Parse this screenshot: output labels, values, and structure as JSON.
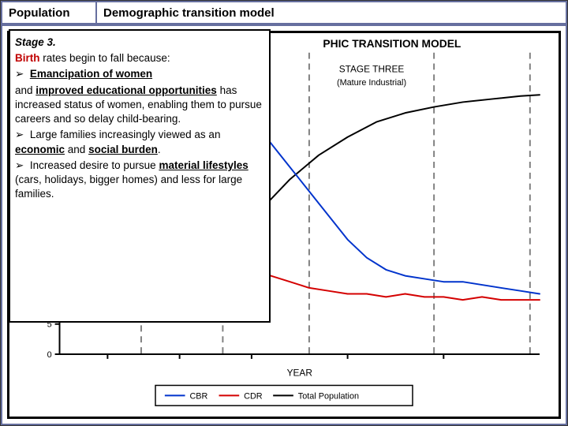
{
  "header": {
    "left": "Population",
    "right": "Demographic transition model"
  },
  "overlay": {
    "title": "Stage 3.",
    "birth_word": "Birth",
    "line_after_birth": " rates begin to fall because:",
    "b1a": "Emancipation of women",
    "b1b_and": "and ",
    "b1b_ul": "improved educational opportunities",
    "b1c": " has increased status of women, enabling them to pursue careers and so delay child-bearing.",
    "b2a": "Large families increasingly viewed as an ",
    "b2_ul1": "economic",
    "b2_mid": " and ",
    "b2_ul2": "social burden",
    "b2_end": ".",
    "b3a": "Increased desire to pursue ",
    "b3_ul": "material lifestyles",
    "b3b": " (cars, holidays, bigger homes) and less for large families."
  },
  "chart": {
    "title": "PHIC TRANSITION MODEL",
    "title_fontsize": 14,
    "title_weight": "bold",
    "title_color": "#000000",
    "stage_label_line1": "STAGE THREE",
    "stage_label_line2": "(Mature Industrial)",
    "stage_label_fontsize": 12,
    "stage_label_color": "#000000",
    "xlabel": "YEAR",
    "label_fontsize": 12,
    "plot_bg": "#ffffff",
    "axis_color": "#000000",
    "axis_width": 2,
    "stage_line_color": "#808080",
    "stage_line_width": 2,
    "stage_line_dash": "8 6",
    "y_ticks": [
      0,
      5
    ],
    "y_range": [
      0,
      50
    ],
    "x_range": [
      0,
      100
    ],
    "x_ticks": [
      10,
      25,
      40,
      60,
      80
    ],
    "stage_boundaries": [
      17,
      34,
      52,
      78,
      98
    ],
    "series": {
      "cbr": {
        "label": "CBR",
        "color": "#0033cc",
        "width": 2,
        "points": [
          [
            0,
            44
          ],
          [
            4,
            42
          ],
          [
            8,
            45
          ],
          [
            12,
            43
          ],
          [
            16,
            44
          ],
          [
            20,
            42
          ],
          [
            24,
            44
          ],
          [
            28,
            43
          ],
          [
            32,
            44
          ],
          [
            36,
            42
          ],
          [
            40,
            39
          ],
          [
            44,
            35
          ],
          [
            48,
            31
          ],
          [
            52,
            27
          ],
          [
            56,
            23
          ],
          [
            60,
            19
          ],
          [
            64,
            16
          ],
          [
            68,
            14
          ],
          [
            72,
            13
          ],
          [
            76,
            12.5
          ],
          [
            80,
            12
          ],
          [
            84,
            12
          ],
          [
            88,
            11.5
          ],
          [
            92,
            11
          ],
          [
            96,
            10.5
          ],
          [
            100,
            10
          ]
        ]
      },
      "cdr": {
        "label": "CDR",
        "color": "#d40000",
        "width": 2,
        "points": [
          [
            0,
            41
          ],
          [
            4,
            39
          ],
          [
            8,
            42
          ],
          [
            12,
            38
          ],
          [
            16,
            40
          ],
          [
            20,
            35
          ],
          [
            24,
            30
          ],
          [
            28,
            25
          ],
          [
            32,
            21
          ],
          [
            36,
            18
          ],
          [
            40,
            15
          ],
          [
            44,
            13
          ],
          [
            48,
            12
          ],
          [
            52,
            11
          ],
          [
            56,
            10.5
          ],
          [
            60,
            10
          ],
          [
            64,
            10
          ],
          [
            68,
            9.5
          ],
          [
            72,
            10
          ],
          [
            76,
            9.5
          ],
          [
            80,
            9.5
          ],
          [
            84,
            9
          ],
          [
            88,
            9.5
          ],
          [
            92,
            9
          ],
          [
            96,
            9
          ],
          [
            100,
            9
          ]
        ]
      },
      "pop": {
        "label": "Total Population",
        "color": "#000000",
        "width": 2,
        "points": [
          [
            0,
            6
          ],
          [
            10,
            7
          ],
          [
            17,
            8
          ],
          [
            24,
            10
          ],
          [
            30,
            14
          ],
          [
            36,
            19
          ],
          [
            42,
            24
          ],
          [
            48,
            29
          ],
          [
            54,
            33
          ],
          [
            60,
            36
          ],
          [
            66,
            38.5
          ],
          [
            72,
            40
          ],
          [
            78,
            41
          ],
          [
            84,
            41.8
          ],
          [
            90,
            42.3
          ],
          [
            96,
            42.8
          ],
          [
            100,
            43
          ]
        ]
      }
    },
    "legend": {
      "box_stroke": "#000000",
      "box_fill": "#ffffff",
      "items": [
        "cbr",
        "cdr",
        "pop"
      ],
      "fontsize": 11
    },
    "tick_fontsize": 11
  }
}
